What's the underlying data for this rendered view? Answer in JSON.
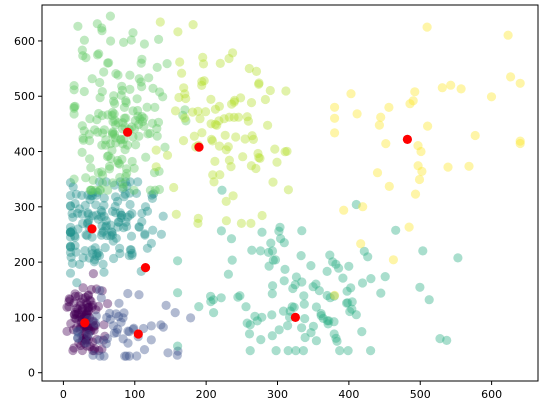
{
  "chart_data": {
    "type": "scatter",
    "title": "",
    "xlabel": "",
    "ylabel": "",
    "xlim": [
      -30,
      665
    ],
    "ylim": [
      -15,
      665
    ],
    "xticks": [
      0,
      100,
      200,
      300,
      400,
      500,
      600
    ],
    "yticks": [
      0,
      100,
      200,
      300,
      400,
      500,
      600
    ],
    "grid": false,
    "legend": "none",
    "colors": {
      "cluster_purple": "#440154",
      "cluster_indigo": "#3b528b",
      "cluster_teal": "#21918c",
      "cluster_green": "#27ad81",
      "cluster_bright_green": "#5ec962",
      "cluster_lime": "#b5de2b",
      "cluster_yellow": "#fde725",
      "centroid": "#ff0000",
      "point_alpha": 0.4
    },
    "clusters": [
      {
        "color": "#440154",
        "cx": 30,
        "cy": 90,
        "sx": 12,
        "sy": 30,
        "n": 110,
        "xr": [
          5,
          75
        ],
        "yr": [
          40,
          190
        ]
      },
      {
        "color": "#3b528b",
        "cx": 95,
        "cy": 80,
        "sx": 45,
        "sy": 35,
        "n": 55,
        "xr": [
          20,
          200
        ],
        "yr": [
          30,
          180
        ]
      },
      {
        "color": "#21918c",
        "cx": 55,
        "cy": 270,
        "sx": 35,
        "sy": 45,
        "n": 150,
        "xr": [
          10,
          190
        ],
        "yr": [
          130,
          345
        ]
      },
      {
        "color": "#27ad81",
        "cx": 320,
        "cy": 140,
        "sx": 80,
        "sy": 70,
        "n": 120,
        "xr": [
          160,
          640
        ],
        "yr": [
          40,
          330
        ]
      },
      {
        "color": "#5ec962",
        "cx": 80,
        "cy": 450,
        "sx": 35,
        "sy": 80,
        "n": 170,
        "xr": [
          15,
          210
        ],
        "yr": [
          330,
          645
        ]
      },
      {
        "color": "#b5de2b",
        "cx": 210,
        "cy": 420,
        "sx": 50,
        "sy": 75,
        "n": 95,
        "xr": [
          130,
          390
        ],
        "yr": [
          270,
          640
        ]
      },
      {
        "color": "#fde725",
        "cx": 500,
        "cy": 430,
        "sx": 90,
        "sy": 120,
        "n": 40,
        "xr": [
          380,
          640
        ],
        "yr": [
          130,
          625
        ]
      }
    ],
    "centroids": [
      {
        "x": 30,
        "y": 90
      },
      {
        "x": 105,
        "y": 70
      },
      {
        "x": 40,
        "y": 260
      },
      {
        "x": 115,
        "y": 190
      },
      {
        "x": 325,
        "y": 100
      },
      {
        "x": 90,
        "y": 435
      },
      {
        "x": 190,
        "y": 408
      },
      {
        "x": 482,
        "y": 422
      }
    ]
  }
}
